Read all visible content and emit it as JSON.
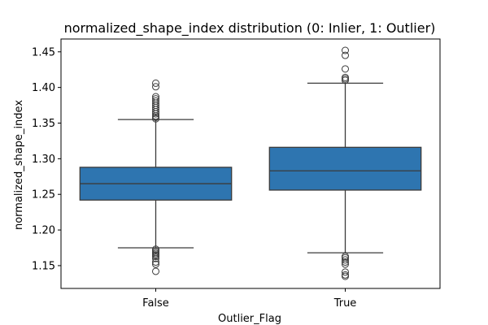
{
  "chart_data": {
    "type": "box",
    "title": "normalized_shape_index distribution (0: Inlier, 1: Outlier)",
    "xlabel": "Outlier_Flag",
    "ylabel": "normalized_shape_index",
    "categories": [
      "False",
      "True"
    ],
    "ylim": [
      1.118,
      1.468
    ],
    "yticks": [
      1.15,
      1.2,
      1.25,
      1.3,
      1.35,
      1.4,
      1.45
    ],
    "ytick_labels": [
      "1.15",
      "1.20",
      "1.25",
      "1.30",
      "1.35",
      "1.40",
      "1.45"
    ],
    "grid": false,
    "box_color": "#2e75b0",
    "line_color": "#3b3b3b",
    "boxes": [
      {
        "category": "False",
        "whisker_low": 1.175,
        "q1": 1.242,
        "median": 1.265,
        "q3": 1.288,
        "whisker_high": 1.355,
        "outliers": [
          1.142,
          1.152,
          1.155,
          1.16,
          1.163,
          1.165,
          1.167,
          1.169,
          1.171,
          1.173,
          1.356,
          1.358,
          1.36,
          1.363,
          1.366,
          1.369,
          1.372,
          1.375,
          1.378,
          1.381,
          1.384,
          1.387,
          1.401,
          1.406
        ]
      },
      {
        "category": "True",
        "whisker_low": 1.168,
        "q1": 1.256,
        "median": 1.283,
        "q3": 1.316,
        "whisker_high": 1.406,
        "outliers": [
          1.135,
          1.137,
          1.141,
          1.152,
          1.155,
          1.158,
          1.161,
          1.163,
          1.41,
          1.412,
          1.414,
          1.426,
          1.445,
          1.452
        ]
      }
    ]
  }
}
